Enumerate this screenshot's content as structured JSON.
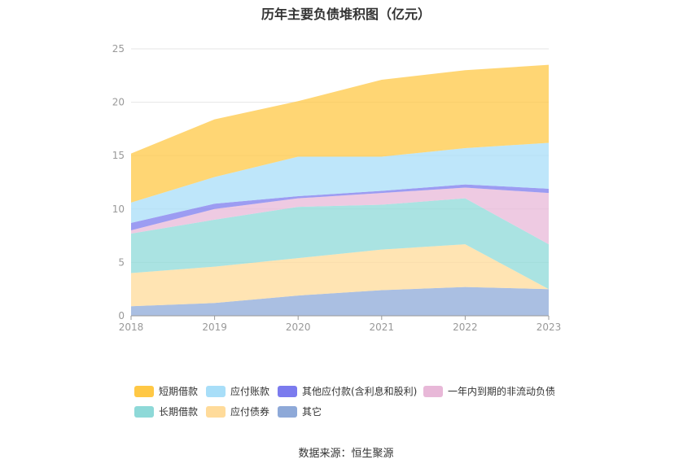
{
  "chart_data": {
    "type": "area",
    "stacked": true,
    "title": "历年主要负债堆积图（亿元）",
    "x": [
      "2018",
      "2019",
      "2020",
      "2021",
      "2022",
      "2023"
    ],
    "ylim": [
      0,
      25
    ],
    "yticks": [
      0,
      5,
      10,
      15,
      20,
      25
    ],
    "grid": true,
    "legend_position": "bottom",
    "series": [
      {
        "name": "其它",
        "color": "#8EA9D8",
        "values": [
          0.9,
          1.2,
          1.9,
          2.4,
          2.7,
          2.5
        ]
      },
      {
        "name": "应付债券",
        "color": "#FFDB9A",
        "values": [
          3.1,
          3.4,
          3.5,
          3.8,
          4.0,
          0.0
        ]
      },
      {
        "name": "长期借款",
        "color": "#8ED9D8",
        "values": [
          3.7,
          4.4,
          4.8,
          4.2,
          4.3,
          4.2
        ]
      },
      {
        "name": "一年内到期的非流动负债",
        "color": "#E8B8D8",
        "values": [
          0.3,
          1.0,
          0.8,
          1.1,
          1.0,
          4.8
        ]
      },
      {
        "name": "其他应付款(含利息和股利)",
        "color": "#7B7BEE",
        "values": [
          0.7,
          0.5,
          0.2,
          0.2,
          0.3,
          0.4
        ]
      },
      {
        "name": "应付账款",
        "color": "#A8DEF8",
        "values": [
          1.9,
          2.5,
          3.7,
          3.2,
          3.4,
          4.3
        ]
      },
      {
        "name": "短期借款",
        "color": "#FFC845",
        "values": [
          4.6,
          5.4,
          5.2,
          7.2,
          7.3,
          7.3
        ]
      }
    ],
    "legend_order": [
      "短期借款",
      "应付账款",
      "其他应付款(含利息和股利)",
      "一年内到期的非流动负债",
      "长期借款",
      "应付债券",
      "其它"
    ]
  },
  "source_text": "数据来源：恒生聚源"
}
